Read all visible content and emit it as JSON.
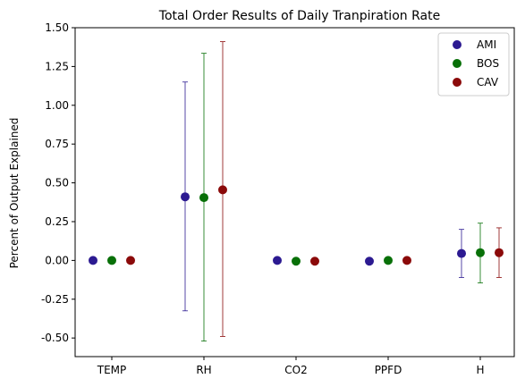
{
  "chart_data": {
    "type": "scatter",
    "title": "Total Order Results of Daily Tranpiration Rate",
    "xlabel": "",
    "ylabel": "Percent of Output Explained",
    "categories": [
      "TEMP",
      "RH",
      "CO2",
      "PPFD",
      "H"
    ],
    "ylim": [
      -0.62,
      1.5
    ],
    "y_ticks": [
      "-0.50",
      "-0.25",
      "0.00",
      "0.25",
      "0.50",
      "0.75",
      "1.00",
      "1.25",
      "1.50"
    ],
    "grid": false,
    "legend_position": "top-right",
    "error_bars": true,
    "series": [
      {
        "name": "AMI",
        "color": "#2c1a91",
        "values": [
          0.0,
          0.41,
          0.0,
          -0.005,
          0.045
        ],
        "lower": [
          0.0,
          -0.325,
          0.0,
          -0.005,
          -0.11
        ],
        "upper": [
          0.0,
          1.15,
          0.0,
          -0.005,
          0.2
        ]
      },
      {
        "name": "BOS",
        "color": "#087008",
        "values": [
          0.0,
          0.405,
          -0.005,
          0.0,
          0.05
        ],
        "lower": [
          0.0,
          -0.52,
          -0.005,
          0.0,
          -0.145
        ],
        "upper": [
          0.0,
          1.335,
          -0.005,
          0.0,
          0.24
        ]
      },
      {
        "name": "CAV",
        "color": "#8b0a0a",
        "values": [
          0.0,
          0.455,
          -0.005,
          0.0,
          0.05
        ],
        "lower": [
          0.0,
          -0.49,
          -0.005,
          0.0,
          -0.11
        ],
        "upper": [
          0.0,
          1.41,
          -0.005,
          0.0,
          0.21
        ]
      }
    ]
  }
}
